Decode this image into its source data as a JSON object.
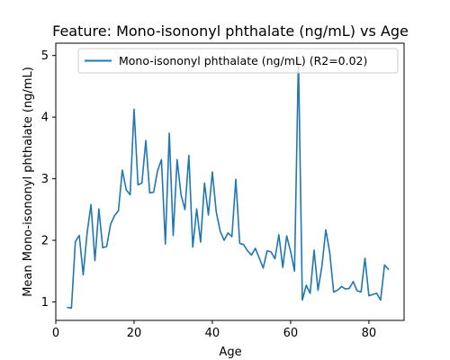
{
  "chart_data": {
    "type": "line",
    "title": "Feature: Mono-isononyl phthalate (ng/mL) vs Age",
    "xlabel": "Age",
    "ylabel": "Mean Mono-isononyl phthalate (ng/mL)",
    "xlim": [
      0,
      89
    ],
    "ylim": [
      0.7,
      5.2
    ],
    "xticks": [
      0,
      20,
      40,
      60,
      80
    ],
    "yticks": [
      1,
      2,
      3,
      4,
      5
    ],
    "grid": false,
    "legend_position": "top-right",
    "series": [
      {
        "name": "Mono-isononyl phthalate (ng/mL) (R2=0.02)",
        "color": "#1f77b4",
        "x": [
          3,
          4,
          5,
          6,
          7,
          8,
          9,
          10,
          11,
          12,
          13,
          14,
          15,
          16,
          17,
          18,
          19,
          20,
          21,
          22,
          23,
          24,
          25,
          26,
          27,
          28,
          29,
          30,
          31,
          32,
          33,
          34,
          35,
          36,
          37,
          38,
          39,
          40,
          41,
          42,
          43,
          44,
          45,
          46,
          47,
          48,
          49,
          50,
          51,
          52,
          53,
          54,
          55,
          56,
          57,
          58,
          59,
          60,
          61,
          62,
          63,
          64,
          65,
          66,
          67,
          68,
          69,
          70,
          71,
          72,
          73,
          74,
          75,
          76,
          77,
          78,
          79,
          80,
          81,
          82,
          83,
          84,
          85
        ],
        "y": [
          0.91,
          0.9,
          1.98,
          2.08,
          1.44,
          2.12,
          2.58,
          1.67,
          2.51,
          1.88,
          1.9,
          2.26,
          2.4,
          2.48,
          3.14,
          2.82,
          2.74,
          4.13,
          2.9,
          2.93,
          3.62,
          2.77,
          2.78,
          3.13,
          3.31,
          1.94,
          3.74,
          2.08,
          3.31,
          2.74,
          2.5,
          3.38,
          1.89,
          2.51,
          1.97,
          2.93,
          2.41,
          3.11,
          2.46,
          2.15,
          2.0,
          2.12,
          2.06,
          2.99,
          1.95,
          1.93,
          1.83,
          1.76,
          1.87,
          1.71,
          1.55,
          1.83,
          1.81,
          1.7,
          2.09,
          1.56,
          2.07,
          1.82,
          1.5,
          4.97,
          1.03,
          1.27,
          1.14,
          1.84,
          1.19,
          1.58,
          2.17,
          1.8,
          1.16,
          1.19,
          1.25,
          1.21,
          1.22,
          1.33,
          1.18,
          1.16,
          1.71,
          1.1,
          1.12,
          1.14,
          1.03,
          1.6,
          1.53
        ]
      }
    ]
  }
}
